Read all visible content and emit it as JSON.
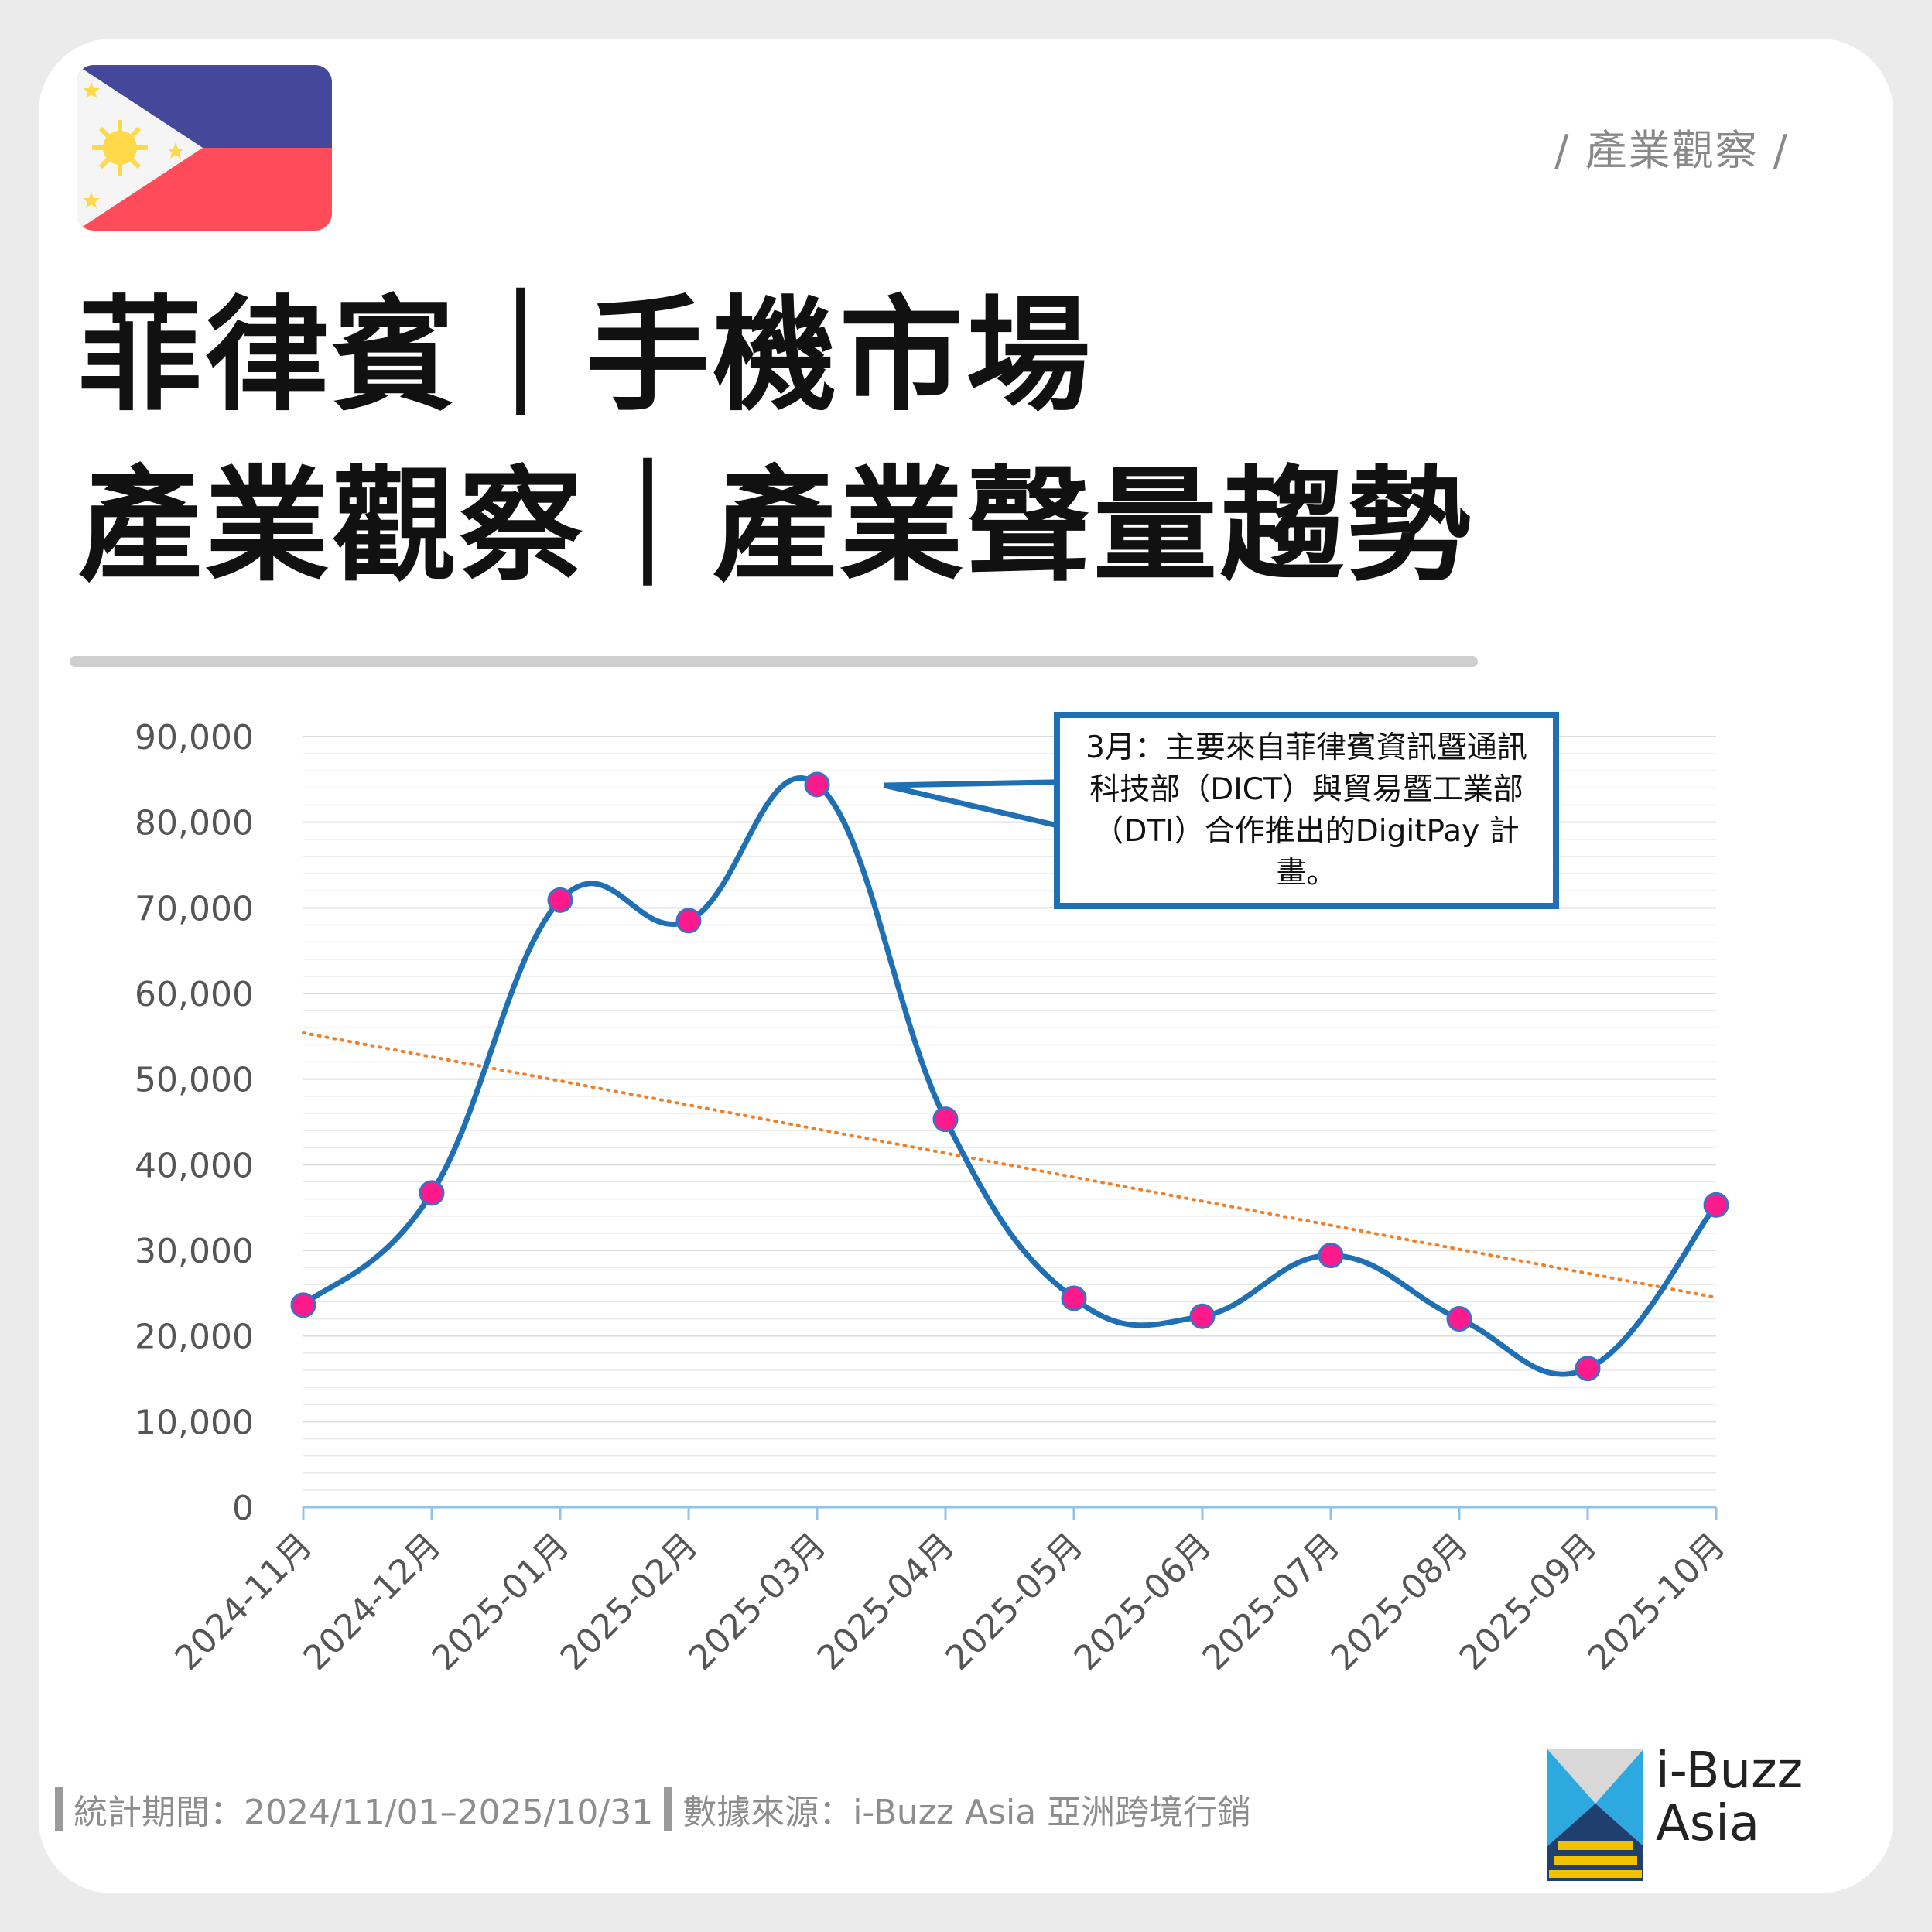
{
  "tag": "/ 產業觀察 /",
  "title_line1": "菲律賓｜手機市場",
  "title_line2": "產業觀察｜產業聲量趨勢",
  "annotation": "3月：主要來自菲律賓資訊暨通訊科技部（DICT）與貿易暨工業部（DTI）合作推出的DigitPay 計畫。",
  "footer": {
    "period": "統計期間：2024/11/01–2025/10/31",
    "source": "數據來源：i-Buzz Asia 亞洲跨境行銷"
  },
  "logo": {
    "line1": "i-Buzz",
    "line2": "Asia",
    "icon": "i-buzz-asia-logo-icon"
  },
  "flag": {
    "icon": "philippines-flag-icon",
    "colors": {
      "blue": "#45479b",
      "red": "#ff4b5a",
      "white": "#f5f5f5",
      "sun": "#ffd94a"
    }
  },
  "colors": {
    "line": "#1f6fb5",
    "marker": "#ff1a8c",
    "marker_edge": "#3f6fc4",
    "trend": "#f07f2a",
    "axis": "#8fc3ea",
    "grid": "#e8e8e8"
  },
  "chart_data": {
    "type": "line",
    "categories": [
      "2024-11月",
      "2024-12月",
      "2025-01月",
      "2025-02月",
      "2025-03月",
      "2025-04月",
      "2025-05月",
      "2025-06月",
      "2025-07月",
      "2025-08月",
      "2025-09月",
      "2025-10月"
    ],
    "series": [
      {
        "values": [
          23600,
          36700,
          70900,
          68500,
          84400,
          45300,
          24400,
          22300,
          29400,
          22000,
          16200,
          35300
        ]
      }
    ],
    "trendline": {
      "type": "linear",
      "start": 55400,
      "end": 24500
    },
    "ylim": [
      0,
      90000
    ],
    "yticks": [
      "0",
      "10,000",
      "20,000",
      "30,000",
      "40,000",
      "50,000",
      "60,000",
      "70,000",
      "80,000",
      "90,000"
    ],
    "xlabel": "",
    "ylabel": "",
    "grid": true
  }
}
